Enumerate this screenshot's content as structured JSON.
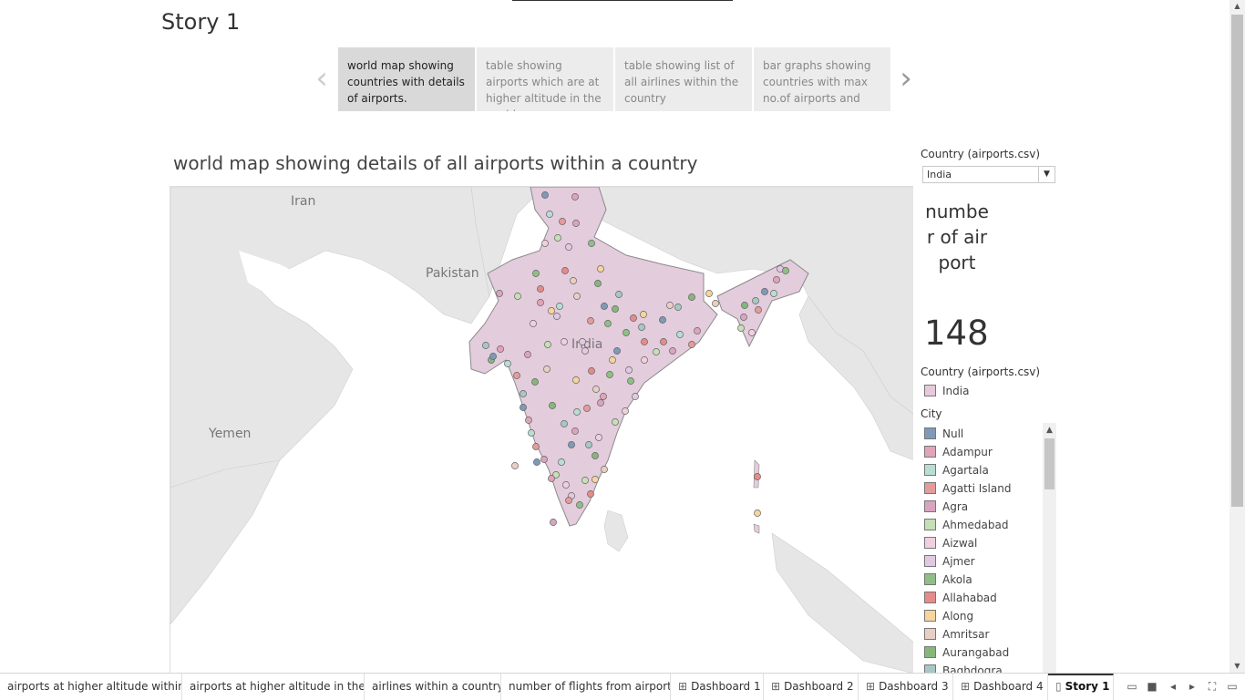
{
  "story": {
    "title": "Story 1"
  },
  "story_points": [
    {
      "text": "world map showing countries with details of airports.",
      "active": true
    },
    {
      "text": "table showing airports which are at higher altitude in the world",
      "active": false
    },
    {
      "text": "table showing list of all airlines within the country",
      "active": false
    },
    {
      "text": "bar graphs showing countries with max no.of airports and",
      "active": false
    }
  ],
  "nav": {
    "prev_icon": "chevron-left-icon",
    "next_icon": "chevron-right-icon",
    "prev_glyph": "‹",
    "next_glyph": "›"
  },
  "sheet": {
    "title": "world map showing details of all airports within a country"
  },
  "map": {
    "labels": {
      "iran": "Iran",
      "pakistan": "Pakistan",
      "india": "India",
      "yemen": "Yemen"
    },
    "colors": {
      "land": "#e6e6e6",
      "water": "#ffffff",
      "india_fill": "#e3ccdc",
      "border": "#8a8a8a"
    }
  },
  "filter": {
    "label": "Country (airports.csv)",
    "value": "India",
    "dropdown_glyph": "▼"
  },
  "kpi": {
    "label": "number of airport",
    "value": "148"
  },
  "legend_country": {
    "title": "Country (airports.csv)",
    "items": [
      {
        "label": "India",
        "color": "#e7c9dc"
      }
    ]
  },
  "legend_city": {
    "title": "City",
    "items": [
      {
        "label": "Null",
        "color": "#7f99b8"
      },
      {
        "label": "Adampur",
        "color": "#e0a3b8"
      },
      {
        "label": "Agartala",
        "color": "#b8ddd3"
      },
      {
        "label": "Agatti Island",
        "color": "#e49b9b"
      },
      {
        "label": "Agra",
        "color": "#d9a4c0"
      },
      {
        "label": "Ahmedabad",
        "color": "#c5e0b5"
      },
      {
        "label": "Aizwal",
        "color": "#f1cfdf"
      },
      {
        "label": "Ajmer",
        "color": "#e2c9e3"
      },
      {
        "label": "Akola",
        "color": "#8fbf85"
      },
      {
        "label": "Allahabad",
        "color": "#e68a8a"
      },
      {
        "label": "Along",
        "color": "#f6d49c"
      },
      {
        "label": "Amritsar",
        "color": "#e8cfc3"
      },
      {
        "label": "Aurangabad",
        "color": "#86b77a"
      },
      {
        "label": "Baghdogra",
        "color": "#a7c7c4"
      }
    ]
  },
  "tabs": [
    {
      "label": "airports at higher altitude within ...",
      "icon": ""
    },
    {
      "label": "airports at higher altitude in the ...",
      "icon": ""
    },
    {
      "label": "airlines within a country",
      "icon": ""
    },
    {
      "label": "number of flights from airport",
      "icon": ""
    },
    {
      "label": "Dashboard 1",
      "icon": "⊞"
    },
    {
      "label": "Dashboard 2",
      "icon": "⊞"
    },
    {
      "label": "Dashboard 3",
      "icon": "⊞"
    },
    {
      "label": "Dashboard 4",
      "icon": "⊞"
    },
    {
      "label": "Story 1",
      "icon": "▯",
      "active": true
    }
  ],
  "controls": {
    "show_sheets": "▭",
    "fill": "■",
    "prev": "◂",
    "next": "▸",
    "fullscreen": "⛶",
    "presentation": "▭"
  },
  "scroll": {
    "up": "▲",
    "down": "▼"
  }
}
